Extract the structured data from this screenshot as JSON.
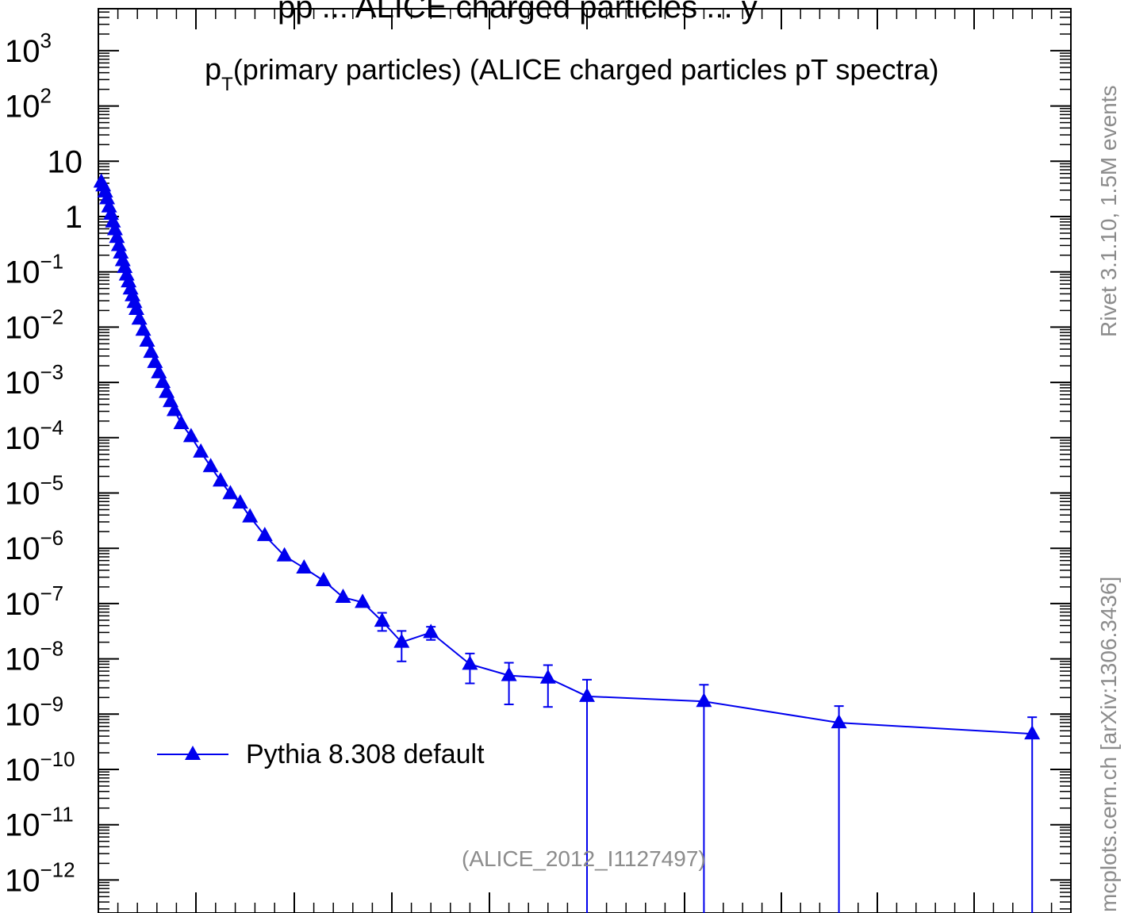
{
  "chart_data": {
    "type": "scatter",
    "title_main": "p",
    "title_sub": "T",
    "title_rest": "(primary particles) (ALICE charged particles pT spectra)",
    "xlabel": "",
    "ylabel": "",
    "yscale": "log",
    "ylim": [
      1.5e-13,
      30000
    ],
    "xlim": [
      0,
      50
    ],
    "xticks_major": [
      0,
      5,
      10,
      15,
      20,
      25,
      30,
      35,
      40,
      45,
      50
    ],
    "y_tick_labels": [
      {
        "value": 1000,
        "base": "10",
        "exp": "3"
      },
      {
        "value": 100,
        "base": "10",
        "exp": "2"
      },
      {
        "value": 10,
        "base": "10",
        "exp": ""
      },
      {
        "value": 1,
        "base": "1",
        "exp": ""
      },
      {
        "value": 0.1,
        "base": "10",
        "exp": "−1"
      },
      {
        "value": 0.01,
        "base": "10",
        "exp": "−2"
      },
      {
        "value": 0.001,
        "base": "10",
        "exp": "−3"
      },
      {
        "value": 0.0001,
        "base": "10",
        "exp": "−4"
      },
      {
        "value": 1e-05,
        "base": "10",
        "exp": "−5"
      },
      {
        "value": 1e-06,
        "base": "10",
        "exp": "−6"
      },
      {
        "value": 1e-07,
        "base": "10",
        "exp": "−7"
      },
      {
        "value": 1e-08,
        "base": "10",
        "exp": "−8"
      },
      {
        "value": 1e-09,
        "base": "10",
        "exp": "−9"
      },
      {
        "value": 1e-10,
        "base": "10",
        "exp": "−10"
      },
      {
        "value": 1e-11,
        "base": "10",
        "exp": "−11"
      },
      {
        "value": 1e-12,
        "base": "10",
        "exp": "−12"
      }
    ],
    "legend_position": "bottom-left",
    "series": [
      {
        "name": "Pythia 8.308 default",
        "color": "#0000ee",
        "marker": "triangle",
        "points": [
          {
            "x": 0.15,
            "y": 4.2
          },
          {
            "x": 0.25,
            "y": 3.6
          },
          {
            "x": 0.35,
            "y": 2.8
          },
          {
            "x": 0.45,
            "y": 2.1
          },
          {
            "x": 0.55,
            "y": 1.5
          },
          {
            "x": 0.65,
            "y": 1.1
          },
          {
            "x": 0.75,
            "y": 0.8
          },
          {
            "x": 0.85,
            "y": 0.58
          },
          {
            "x": 0.95,
            "y": 0.42
          },
          {
            "x": 1.05,
            "y": 0.3
          },
          {
            "x": 1.15,
            "y": 0.22
          },
          {
            "x": 1.25,
            "y": 0.16
          },
          {
            "x": 1.35,
            "y": 0.12
          },
          {
            "x": 1.45,
            "y": 0.088
          },
          {
            "x": 1.55,
            "y": 0.066
          },
          {
            "x": 1.65,
            "y": 0.049
          },
          {
            "x": 1.75,
            "y": 0.037
          },
          {
            "x": 1.85,
            "y": 0.028
          },
          {
            "x": 1.95,
            "y": 0.021
          },
          {
            "x": 2.1,
            "y": 0.014
          },
          {
            "x": 2.3,
            "y": 0.0088
          },
          {
            "x": 2.5,
            "y": 0.0056
          },
          {
            "x": 2.7,
            "y": 0.0035
          },
          {
            "x": 2.9,
            "y": 0.0023
          },
          {
            "x": 3.1,
            "y": 0.0015
          },
          {
            "x": 3.3,
            "y": 0.001
          },
          {
            "x": 3.5,
            "y": 0.00066
          },
          {
            "x": 3.7,
            "y": 0.00045
          },
          {
            "x": 3.9,
            "y": 0.00031
          },
          {
            "x": 4.25,
            "y": 0.00018
          },
          {
            "x": 4.75,
            "y": 0.000105
          },
          {
            "x": 5.25,
            "y": 5.5e-05
          },
          {
            "x": 5.75,
            "y": 3e-05
          },
          {
            "x": 6.25,
            "y": 1.65e-05
          },
          {
            "x": 6.75,
            "y": 9.7e-06
          },
          {
            "x": 7.25,
            "y": 6.6e-06
          },
          {
            "x": 7.75,
            "y": 3.7e-06
          },
          {
            "x": 8.5,
            "y": 1.7e-06
          },
          {
            "x": 9.5,
            "y": 7.3e-07
          },
          {
            "x": 10.5,
            "y": 4.4e-07
          },
          {
            "x": 11.5,
            "y": 2.6e-07
          },
          {
            "x": 12.5,
            "y": 1.3e-07
          },
          {
            "x": 13.5,
            "y": 1.05e-07
          },
          {
            "x": 14.5,
            "y": 4.8e-08,
            "yerr_low": 3.2e-08,
            "yerr_high": 6.8e-08
          },
          {
            "x": 15.5,
            "y": 2e-08,
            "yerr_low": 9e-09,
            "yerr_high": 3.2e-08
          },
          {
            "x": 17.0,
            "y": 3e-08,
            "yerr_low": 2.2e-08,
            "yerr_high": 3.8e-08
          },
          {
            "x": 19.0,
            "y": 8e-09,
            "yerr_low": 3.6e-09,
            "yerr_high": 1.25e-08
          },
          {
            "x": 21.0,
            "y": 5e-09,
            "yerr_low": 1.5e-09,
            "yerr_high": 8.5e-09
          },
          {
            "x": 23.0,
            "y": 4.5e-09,
            "yerr_low": 1.35e-09,
            "yerr_high": 7.7e-09
          },
          {
            "x": 25.0,
            "y": 2.1e-09,
            "yerr_low": 1e-13,
            "yerr_high": 4.2e-09
          },
          {
            "x": 31.0,
            "y": 1.7e-09,
            "yerr_low": 1e-13,
            "yerr_high": 3.4e-09
          },
          {
            "x": 38.0,
            "y": 7e-10,
            "yerr_low": 1e-13,
            "yerr_high": 1.4e-09
          },
          {
            "x": 48.0,
            "y": 4.4e-10,
            "yerr_low": 1e-13,
            "yerr_high": 8.8e-10
          }
        ]
      }
    ]
  },
  "watermark": "(ALICE_2012_I1127497)",
  "side_text": {
    "rivet": "Rivet 3.1.10,  1.5M events",
    "mcplots": "mcplots.cern.ch [arXiv:1306.3436]"
  },
  "top_cut_text": "pp   ...   ALICE charged particles ... y"
}
